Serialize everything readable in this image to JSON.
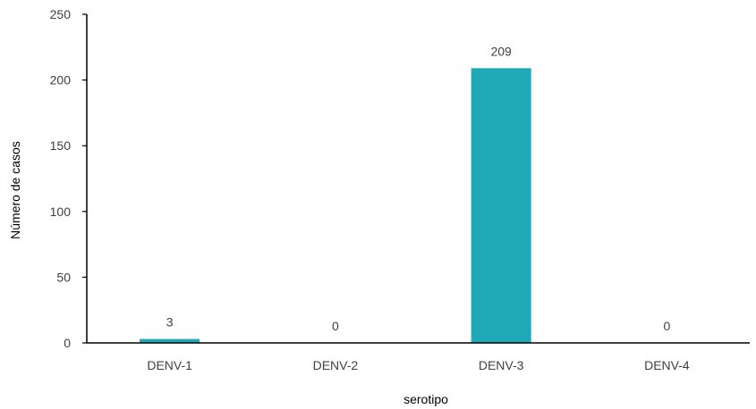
{
  "chart_data": {
    "type": "bar",
    "categories": [
      "DENV-1",
      "DENV-2",
      "DENV-3",
      "DENV-4"
    ],
    "values": [
      3,
      0,
      209,
      0
    ],
    "data_labels": [
      "3",
      "0",
      "209",
      "0"
    ],
    "xlabel": "serotipo",
    "ylabel": "Número de casos",
    "ylim": [
      0,
      250
    ],
    "yticks": [
      0,
      50,
      100,
      150,
      200,
      250
    ],
    "grid": false,
    "legend": "none",
    "bar_color": "#1fa9b7",
    "axis_color": "#000000"
  }
}
